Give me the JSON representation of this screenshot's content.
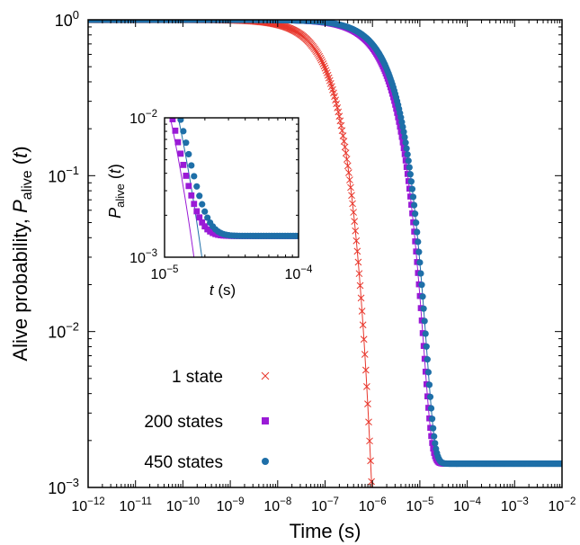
{
  "chart_data": [
    {
      "type": "scatter",
      "xlabel": "Time (s)",
      "ylabel_main": "Alive probability, ",
      "ylabel_var": "P",
      "ylabel_sub": "alive",
      "ylabel_arg": "t",
      "x_scale": "log",
      "y_scale": "log",
      "xlim": [
        1e-12,
        0.01
      ],
      "ylim": [
        0.001,
        1
      ],
      "x_ticks": [
        {
          "base": "10",
          "exp": "−12"
        },
        {
          "base": "10",
          "exp": "−11"
        },
        {
          "base": "10",
          "exp": "−10"
        },
        {
          "base": "10",
          "exp": "−9"
        },
        {
          "base": "10",
          "exp": "−8"
        },
        {
          "base": "10",
          "exp": "−7"
        },
        {
          "base": "10",
          "exp": "−6"
        },
        {
          "base": "10",
          "exp": "−5"
        },
        {
          "base": "10",
          "exp": "−4"
        },
        {
          "base": "10",
          "exp": "−3"
        },
        {
          "base": "10",
          "exp": "−2"
        }
      ],
      "y_ticks": [
        {
          "base": "10",
          "exp": "−3"
        },
        {
          "base": "10",
          "exp": "−2"
        },
        {
          "base": "10",
          "exp": "−1"
        },
        {
          "base": "10",
          "exp": "0"
        }
      ],
      "grid": false,
      "legend_position": "bottom-left",
      "series": [
        {
          "name": "1 state",
          "marker": "x",
          "color": "#e8372c",
          "p_floor": 0,
          "tau": 1.4e-07,
          "beta": 1.0
        },
        {
          "name": "200 states",
          "marker": "square",
          "color": "#9a1ad6",
          "p_floor": 0.00142,
          "tau": 2.4e-06,
          "beta": 1.0
        },
        {
          "name": "450 states",
          "marker": "circle",
          "color": "#1e6fa8",
          "p_floor": 0.00142,
          "tau": 2.75e-06,
          "beta": 1.0
        }
      ]
    },
    {
      "type": "scatter",
      "inset": true,
      "xlabel_var": "t",
      "xlabel_unit": " (s)",
      "ylabel_var": "P",
      "ylabel_sub": "alive",
      "ylabel_arg": "t",
      "x_scale": "log",
      "y_scale": "log",
      "xlim": [
        1e-05,
        0.0001
      ],
      "ylim": [
        0.001,
        0.01
      ],
      "x_ticks": [
        {
          "base": "10",
          "exp": "−5"
        },
        {
          "base": "10",
          "exp": "−4"
        }
      ],
      "y_ticks": [
        {
          "base": "10",
          "exp": "−3"
        },
        {
          "base": "10",
          "exp": "−2"
        }
      ],
      "series": [
        {
          "name": "200 states",
          "marker": "square",
          "color": "#9a1ad6",
          "p_floor": 0.00142,
          "tau": 2.4e-06,
          "beta": 1.0
        },
        {
          "name": "450 states",
          "marker": "circle",
          "color": "#1e6fa8",
          "p_floor": 0.00142,
          "tau": 2.75e-06,
          "beta": 1.0
        }
      ]
    }
  ]
}
